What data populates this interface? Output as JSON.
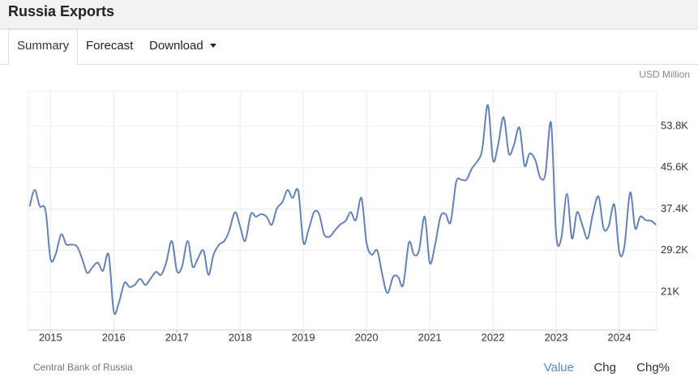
{
  "header": {
    "title": "Russia Exports"
  },
  "tabs": [
    "Summary",
    "Forecast",
    "Download"
  ],
  "source": "Central Bank of Russia",
  "buttons": [
    "Value",
    "Chg",
    "Chg%"
  ],
  "chart_data": {
    "type": "line",
    "unit": "USD Million",
    "color": "#6482b8",
    "grid": true,
    "xlim": [
      2014.65,
      2024.59
    ],
    "xticks": [
      2015,
      2016,
      2017,
      2018,
      2019,
      2020,
      2021,
      2022,
      2023,
      2024
    ],
    "ylim": [
      13480,
      60680
    ],
    "yticks": [
      {
        "value": 21000,
        "label": "21K"
      },
      {
        "value": 29200,
        "label": "29.2K"
      },
      {
        "value": 37400,
        "label": "37.4K"
      },
      {
        "value": 45600,
        "label": "45.6K"
      },
      {
        "value": 53800,
        "label": "53.8K"
      }
    ],
    "x": [
      2014.67,
      2014.75,
      2014.83,
      2014.92,
      2015.0,
      2015.08,
      2015.17,
      2015.25,
      2015.33,
      2015.42,
      2015.5,
      2015.58,
      2015.67,
      2015.75,
      2015.83,
      2015.92,
      2016.0,
      2016.08,
      2016.17,
      2016.25,
      2016.33,
      2016.42,
      2016.5,
      2016.58,
      2016.67,
      2016.75,
      2016.83,
      2016.92,
      2017.0,
      2017.08,
      2017.17,
      2017.25,
      2017.33,
      2017.42,
      2017.5,
      2017.58,
      2017.67,
      2017.75,
      2017.83,
      2017.92,
      2018.0,
      2018.08,
      2018.17,
      2018.25,
      2018.33,
      2018.42,
      2018.5,
      2018.58,
      2018.67,
      2018.75,
      2018.83,
      2018.92,
      2019.0,
      2019.08,
      2019.17,
      2019.25,
      2019.33,
      2019.42,
      2019.5,
      2019.58,
      2019.67,
      2019.75,
      2019.83,
      2019.92,
      2020.0,
      2020.08,
      2020.17,
      2020.25,
      2020.33,
      2020.42,
      2020.5,
      2020.58,
      2020.67,
      2020.75,
      2020.83,
      2020.92,
      2021.0,
      2021.08,
      2021.17,
      2021.25,
      2021.33,
      2021.42,
      2021.5,
      2021.58,
      2021.67,
      2021.75,
      2021.83,
      2021.92,
      2022.0,
      2022.08,
      2022.17,
      2022.25,
      2022.33,
      2022.42,
      2022.5,
      2022.58,
      2022.67,
      2022.75,
      2022.83,
      2022.92,
      2023.0,
      2023.08,
      2023.17,
      2023.25,
      2023.33,
      2023.42,
      2023.5,
      2023.58,
      2023.67,
      2023.75,
      2023.83,
      2023.92,
      2024.0,
      2024.08,
      2024.17,
      2024.25,
      2024.33,
      2024.42,
      2024.5,
      2024.58
    ],
    "values": [
      37960,
      41200,
      38000,
      37200,
      27600,
      28400,
      32400,
      30400,
      30400,
      30000,
      27600,
      24800,
      26000,
      26800,
      25200,
      28400,
      17200,
      18800,
      22800,
      22000,
      22400,
      23600,
      22400,
      23600,
      25000,
      24400,
      26800,
      31100,
      25200,
      26000,
      31100,
      26000,
      27600,
      29200,
      24400,
      28400,
      30400,
      31100,
      33200,
      36800,
      34000,
      31100,
      36400,
      35900,
      36400,
      35900,
      34300,
      37500,
      38800,
      41200,
      39600,
      41000,
      30800,
      33200,
      36800,
      36400,
      32400,
      32000,
      33200,
      34300,
      35100,
      36800,
      35200,
      39600,
      30800,
      28400,
      29200,
      24400,
      20800,
      24000,
      24000,
      22400,
      30800,
      28400,
      29200,
      35900,
      26800,
      30000,
      35900,
      36400,
      34800,
      42800,
      43200,
      43200,
      45500,
      46800,
      49200,
      58000,
      47100,
      50000,
      55600,
      48400,
      50000,
      53500,
      46000,
      48400,
      47100,
      43600,
      44400,
      54400,
      32400,
      31600,
      40400,
      31600,
      36800,
      34000,
      31600,
      36400,
      39900,
      33600,
      34000,
      38300,
      28800,
      30000,
      40700,
      33600,
      35900,
      35200,
      35100,
      34300
    ]
  }
}
